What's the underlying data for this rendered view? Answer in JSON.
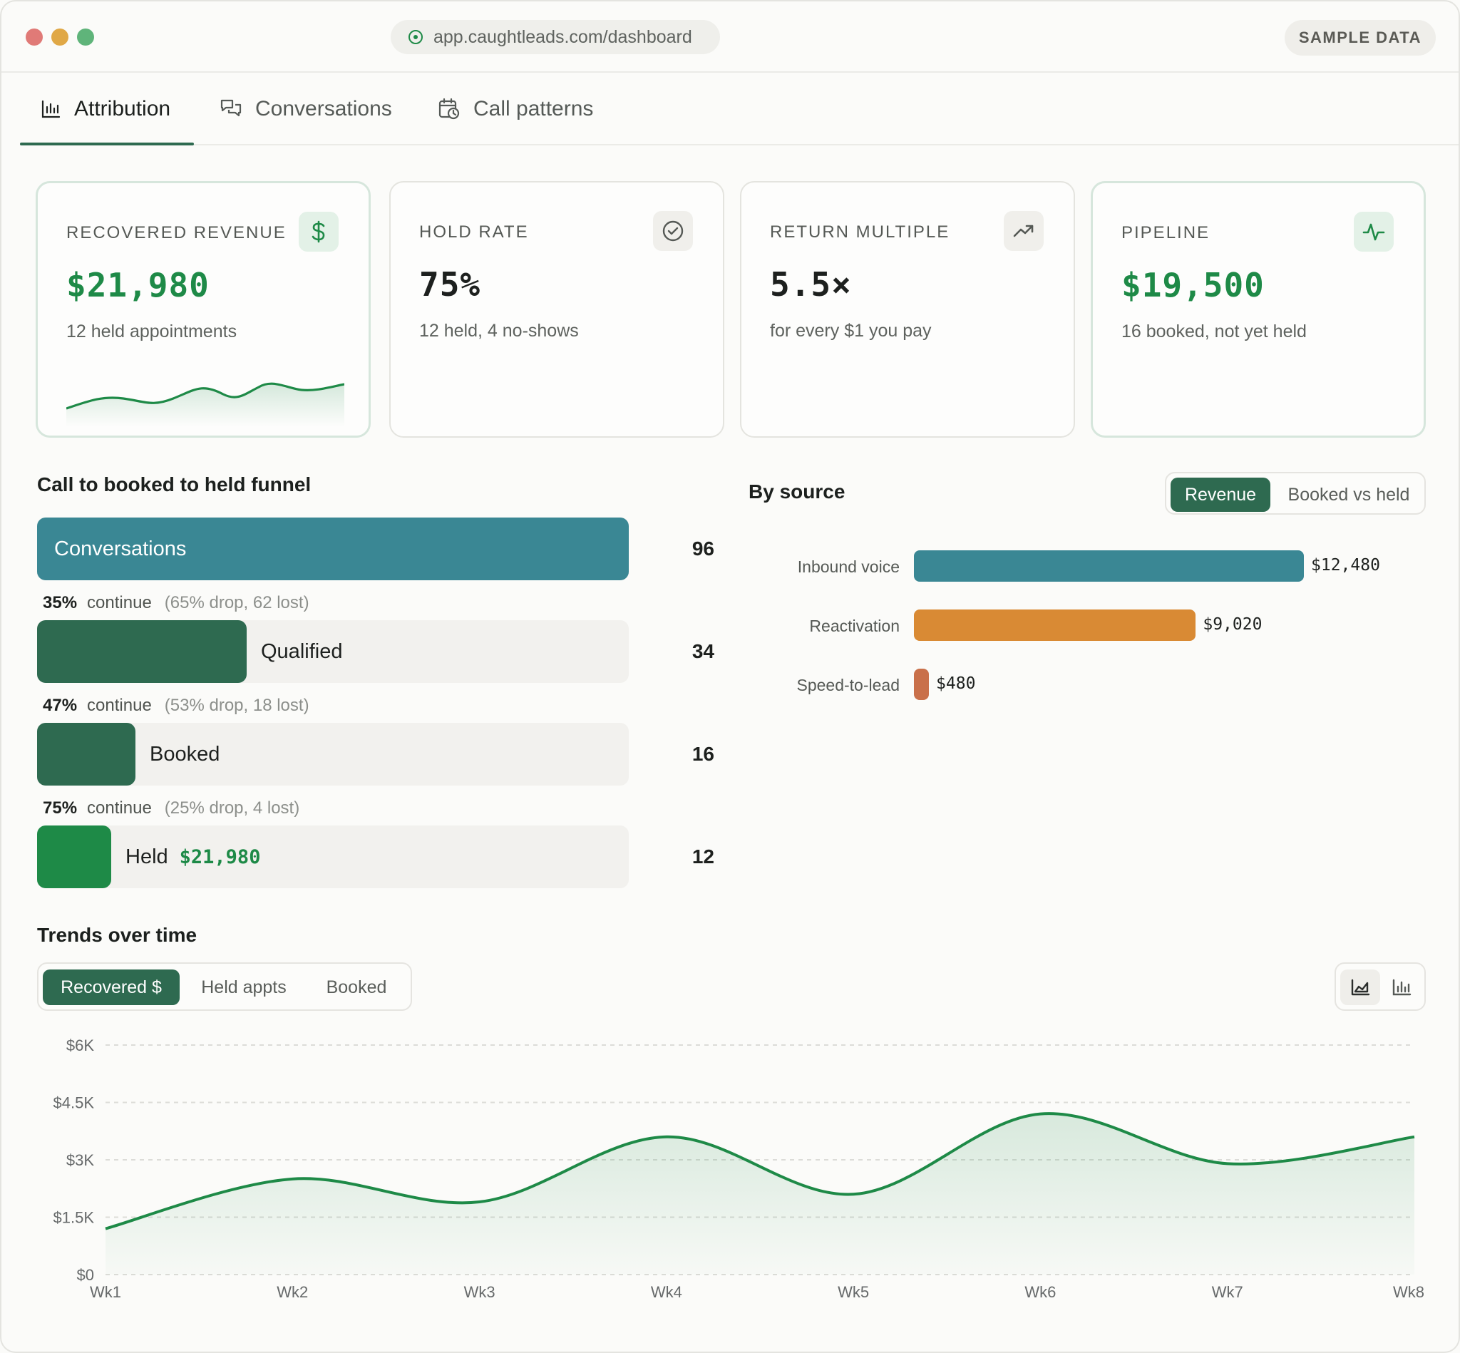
{
  "browser": {
    "url": "app.caughtleads.com/dashboard",
    "badge": "SAMPLE DATA"
  },
  "tabs": [
    {
      "label": "Attribution",
      "icon": "bar-chart-icon",
      "active": true
    },
    {
      "label": "Conversations",
      "icon": "chat-icon",
      "active": false
    },
    {
      "label": "Call patterns",
      "icon": "calendar-clock-icon",
      "active": false
    }
  ],
  "kpis": [
    {
      "label": "RECOVERED REVENUE",
      "value": "$21,980",
      "sub": "12 held appointments",
      "icon": "dollar-icon"
    },
    {
      "label": "HOLD RATE",
      "value": "75%",
      "sub": "12 held, 4 no-shows",
      "icon": "check-circle-icon"
    },
    {
      "label": "RETURN MULTIPLE",
      "value": "5.5×",
      "sub": "for every $1 you pay",
      "icon": "trending-up-icon"
    },
    {
      "label": "PIPELINE",
      "value": "$19,500",
      "sub": "16 booked, not yet held",
      "icon": "pulse-icon"
    }
  ],
  "funnel": {
    "title": "Call to booked to held funnel",
    "stages": [
      {
        "label": "Conversations",
        "count": "96",
        "value": 96
      },
      {
        "label": "Qualified",
        "count": "34",
        "value": 34
      },
      {
        "label": "Booked",
        "count": "16",
        "value": 16
      },
      {
        "label": "Held",
        "count": "12",
        "value": 12,
        "revenue": "$21,980"
      }
    ],
    "drops": [
      {
        "pct": "35%",
        "continue": "continue",
        "detail": "(65% drop, 62 lost)"
      },
      {
        "pct": "47%",
        "continue": "continue",
        "detail": "(53% drop, 18 lost)"
      },
      {
        "pct": "75%",
        "continue": "continue",
        "detail": "(25% drop, 4 lost)"
      }
    ],
    "colors": {
      "conversations": "#3a8794",
      "qualified": "#2e6a50",
      "booked": "#2e6a50",
      "held": "#1e8a47"
    }
  },
  "by_source": {
    "title": "By source",
    "toggle": {
      "revenue": "Revenue",
      "booked_vs_held": "Booked vs held",
      "selected": "Revenue"
    },
    "rows": [
      {
        "label": "Inbound voice",
        "value_text": "$12,480",
        "value": 12480,
        "color": "#3a8794"
      },
      {
        "label": "Reactivation",
        "value_text": "$9,020",
        "value": 9020,
        "color": "#d98a34"
      },
      {
        "label": "Speed-to-lead",
        "value_text": "$480",
        "value": 480,
        "color": "#c9704a"
      }
    ]
  },
  "trends": {
    "title": "Trends over time",
    "toggle": {
      "recovered": "Recovered $",
      "held": "Held appts",
      "booked": "Booked",
      "selected": "Recovered $"
    },
    "view_icons": [
      "area-chart-icon",
      "bar-chart-icon"
    ]
  },
  "chart_data": {
    "type": "area",
    "x": [
      "Wk1",
      "Wk2",
      "Wk3",
      "Wk4",
      "Wk5",
      "Wk6",
      "Wk7",
      "Wk8"
    ],
    "series": [
      {
        "values": [
          1200,
          2500,
          1900,
          3600,
          2100,
          4200,
          2900,
          3600
        ]
      }
    ],
    "yticks": [
      "$0",
      "$1.5K",
      "$3K",
      "$4.5K",
      "$6K"
    ],
    "ylim": [
      0,
      6000
    ],
    "grid": true,
    "color": "#1e8a47"
  }
}
